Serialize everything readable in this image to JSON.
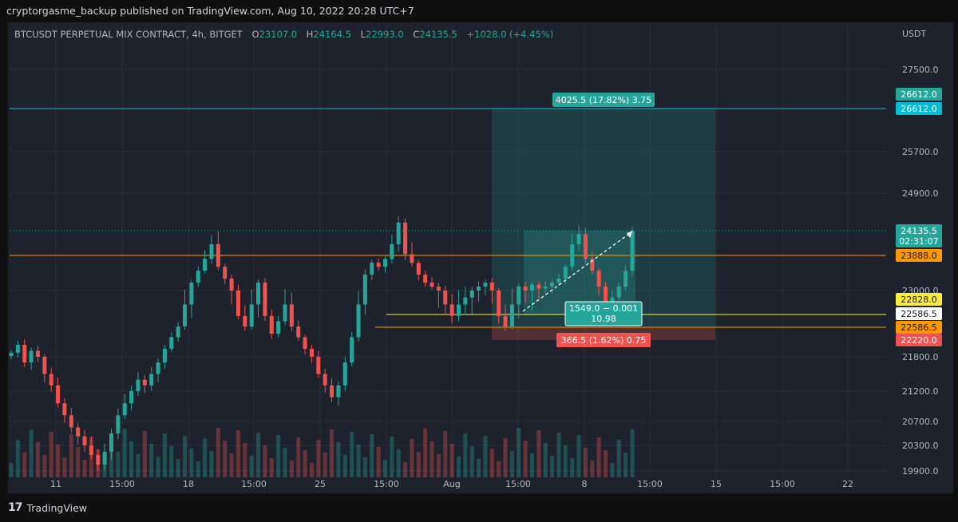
{
  "header": {
    "publisher_line": "cryptorgasme_backup published on TradingView.com, Aug 10, 2022 20:28 UTC+7"
  },
  "legend": {
    "symbol": "BTCUSDT PERPETUAL MIX CONTRACT, 4h, BITGET",
    "o_label": "O",
    "o_value": "23107.0",
    "h_label": "H",
    "h_value": "24164.5",
    "l_label": "L",
    "l_value": "22993.0",
    "c_label": "C",
    "c_value": "24135.5",
    "change": "+1028.0 (+4.45%)"
  },
  "footer": {
    "logo_text": "17",
    "brand": "TradingView"
  },
  "colors": {
    "up": "#26a69a",
    "down": "#ef5350",
    "panel": "#1e222d",
    "text": "#b2b5be",
    "cyan": "#00bcd4",
    "orange": "#ff9800",
    "yellow": "#ffeb3b"
  },
  "chart_data": {
    "type": "candlestick",
    "timeframe": "4h",
    "y_axis_unit": "USDT",
    "y_ticks": [
      "27500.0",
      "25700.0",
      "24900.0",
      "23000.0",
      "21800.0",
      "21200.0",
      "20700.0",
      "20300.0",
      "19900.0"
    ],
    "x_ticks": [
      "11",
      "15:00",
      "18",
      "15:00",
      "25",
      "15:00",
      "Aug",
      "15:00",
      "8",
      "15:00",
      "15",
      "15:00",
      "22"
    ],
    "horizontal_lines": [
      {
        "price": 26612.0,
        "label": "26612.0",
        "color": "#00bcd4"
      },
      {
        "price": 23888.0,
        "label": "23888.0",
        "color": "#ff9800"
      },
      {
        "price": 22828.0,
        "label": "22828.0",
        "color": "#ffeb3b"
      },
      {
        "price": 22586.5,
        "label": "22586.5",
        "color": "#ff9800"
      }
    ],
    "price_labels": [
      {
        "text": "26612.0",
        "bg": "#26a69a"
      },
      {
        "text": "26612.0",
        "bg": "#00bcd4"
      },
      {
        "text": "24135.5",
        "bg": "#26a69a"
      },
      {
        "text": "02:31:07",
        "bg": "#26a69a"
      },
      {
        "text": "23888.0",
        "bg": "#ff9800"
      },
      {
        "text": "22828.0",
        "bg": "#ffeb3b"
      },
      {
        "text": "22586.5",
        "bg": "#ffffff"
      },
      {
        "text": "22586.5",
        "bg": "#ff9800"
      },
      {
        "text": "22220.0",
        "bg": "#ef5350"
      }
    ],
    "long_position": {
      "entry": 22586.5,
      "target": 26612.0,
      "stop": 22220.0,
      "target_label": "4025.5 (17.82%) 3.75",
      "stop_label": "366.5 (1.62%) 0.75"
    },
    "measure_label_line1": "1549.0 − 0.001",
    "measure_label_line2": "10.98",
    "last_close": 24135.5,
    "candles_approx": [
      21900,
      22100,
      21700,
      21950,
      21800,
      21500,
      21300,
      21000,
      20800,
      20600,
      20450,
      20300,
      20150,
      20000,
      20200,
      20500,
      20800,
      21000,
      21200,
      21400,
      21300,
      21500,
      21700,
      22000,
      22300,
      22600,
      22900,
      23200,
      23500,
      23800,
      24000,
      23600,
      23300,
      23000,
      22800,
      22600,
      22900,
      23200,
      22800,
      22400,
      22700,
      22900,
      22600,
      22300,
      22000,
      21800,
      21500,
      21300,
      21100,
      21300,
      21700,
      22300,
      22900,
      23400,
      23700,
      23600,
      23800,
      24000,
      24300,
      23900,
      23700,
      23400,
      23200,
      23100,
      23000,
      22900,
      22800,
      22900,
      22950,
      23000,
      23100,
      23200,
      23000,
      22800,
      22600,
      22900,
      23100,
      23000,
      23150,
      23050,
      23100,
      23200,
      23300,
      23600,
      24000,
      24100,
      23800,
      23500,
      23100,
      22900,
      22950,
      23100,
      23500,
      24135
    ]
  }
}
